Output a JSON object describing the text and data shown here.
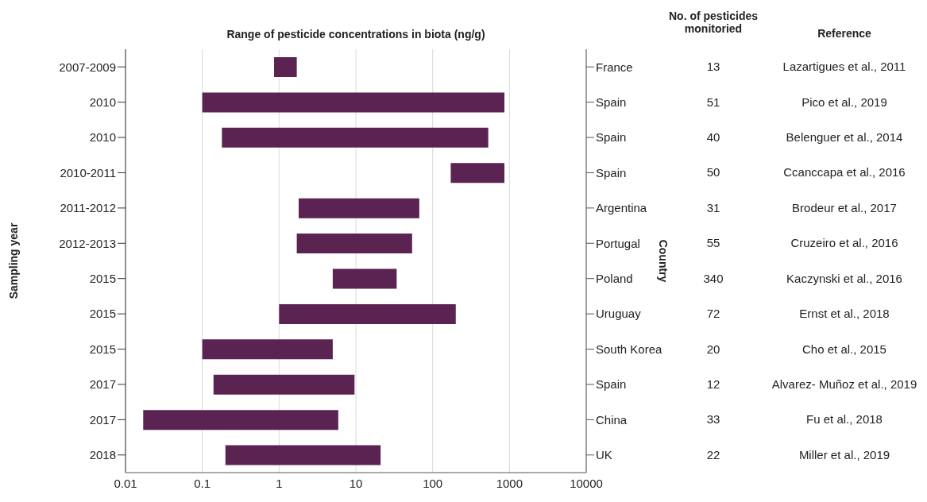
{
  "chart_data": {
    "type": "bar",
    "orientation": "horizontal",
    "title": "Range of pesticide concentrations in biota (ng/g)",
    "ylabel": "Sampling year",
    "y2label": "Country",
    "categories": [
      "2007-2009",
      "2010",
      "2010",
      "2010-2011",
      "2011-2012",
      "2012-2013",
      "2015",
      "2015",
      "2015",
      "2017",
      "2017",
      "2018"
    ],
    "y2_categories": [
      "France",
      "Spain",
      "Spain",
      "Spain",
      "Argentina",
      "Portugal",
      "Poland",
      "Uruguay",
      "South Korea",
      "Spain",
      "China",
      "UK"
    ],
    "base": [
      0.86,
      0.1,
      0.18,
      172,
      1.8,
      1.7,
      5,
      1,
      0.1,
      0.14,
      0.017,
      0.2
    ],
    "values": [
      0.84,
      859.9,
      529.82,
      688,
      65.2,
      52.3,
      29,
      199,
      4.9,
      9.46,
      5.883,
      20.8
    ],
    "color": "#5a2352",
    "log": "x",
    "xlim": [
      0.01,
      10000
    ],
    "xticks": [
      0.01,
      0.1,
      1,
      10,
      100,
      1000,
      10000
    ],
    "grid": "x",
    "annotations": [
      "No. of pesticides monitoried",
      "Reference",
      "13",
      "Lazartigues et al., 2011",
      "51",
      "Pico et al., 2019",
      "40",
      "Belenguer et al., 2014",
      "50",
      "Ccanccapa et al., 2016",
      "31",
      "Brodeur et al., 2017",
      "55",
      "Cruzeiro et al., 2016",
      "340",
      "Kaczynski et al., 2016",
      "72",
      "Ernst et al., 2018",
      "20",
      "Cho et al., 2015",
      "12",
      "Alvarez- Muñoz et al., 2019",
      "33",
      "Fu et al., 2018",
      "22",
      "Miller et al., 2019"
    ]
  }
}
